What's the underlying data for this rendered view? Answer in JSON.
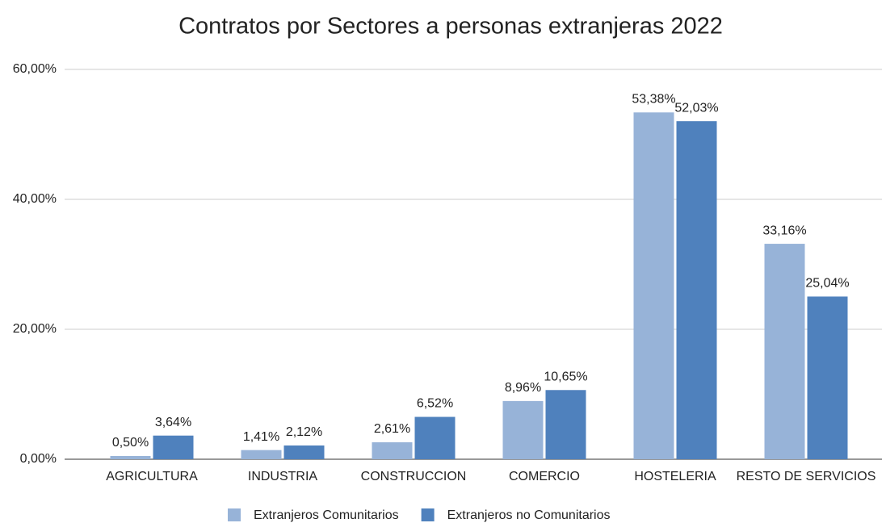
{
  "chart_data": {
    "type": "bar",
    "title": "Contratos por Sectores a personas extranjeras 2022",
    "categories": [
      "AGRICULTURA",
      "INDUSTRIA",
      "CONSTRUCCION",
      "COMERCIO",
      "HOSTELERIA",
      "RESTO DE SERVICIOS"
    ],
    "series": [
      {
        "name": "Extranjeros Comunitarios",
        "color": "#97b3d8",
        "values": [
          0.5,
          1.41,
          2.61,
          8.96,
          53.38,
          33.16
        ],
        "value_labels": [
          "0,50%",
          "1,41%",
          "2,61%",
          "8,96%",
          "53,38%",
          "33,16%"
        ]
      },
      {
        "name": "Extranjeros no Comunitarios",
        "color": "#4f81bd",
        "values": [
          3.64,
          2.12,
          6.52,
          10.65,
          52.03,
          25.04
        ],
        "value_labels": [
          "3,64%",
          "2,12%",
          "6,52%",
          "10,65%",
          "52,03%",
          "25,04%"
        ]
      }
    ],
    "ylim": [
      0,
      60
    ],
    "yticks": [
      {
        "value": 0,
        "label": "0,00%"
      },
      {
        "value": 20,
        "label": "20,00%"
      },
      {
        "value": 40,
        "label": "40,00%"
      },
      {
        "value": 60,
        "label": "60,00%"
      }
    ],
    "grid": true,
    "legend": "bottom"
  }
}
